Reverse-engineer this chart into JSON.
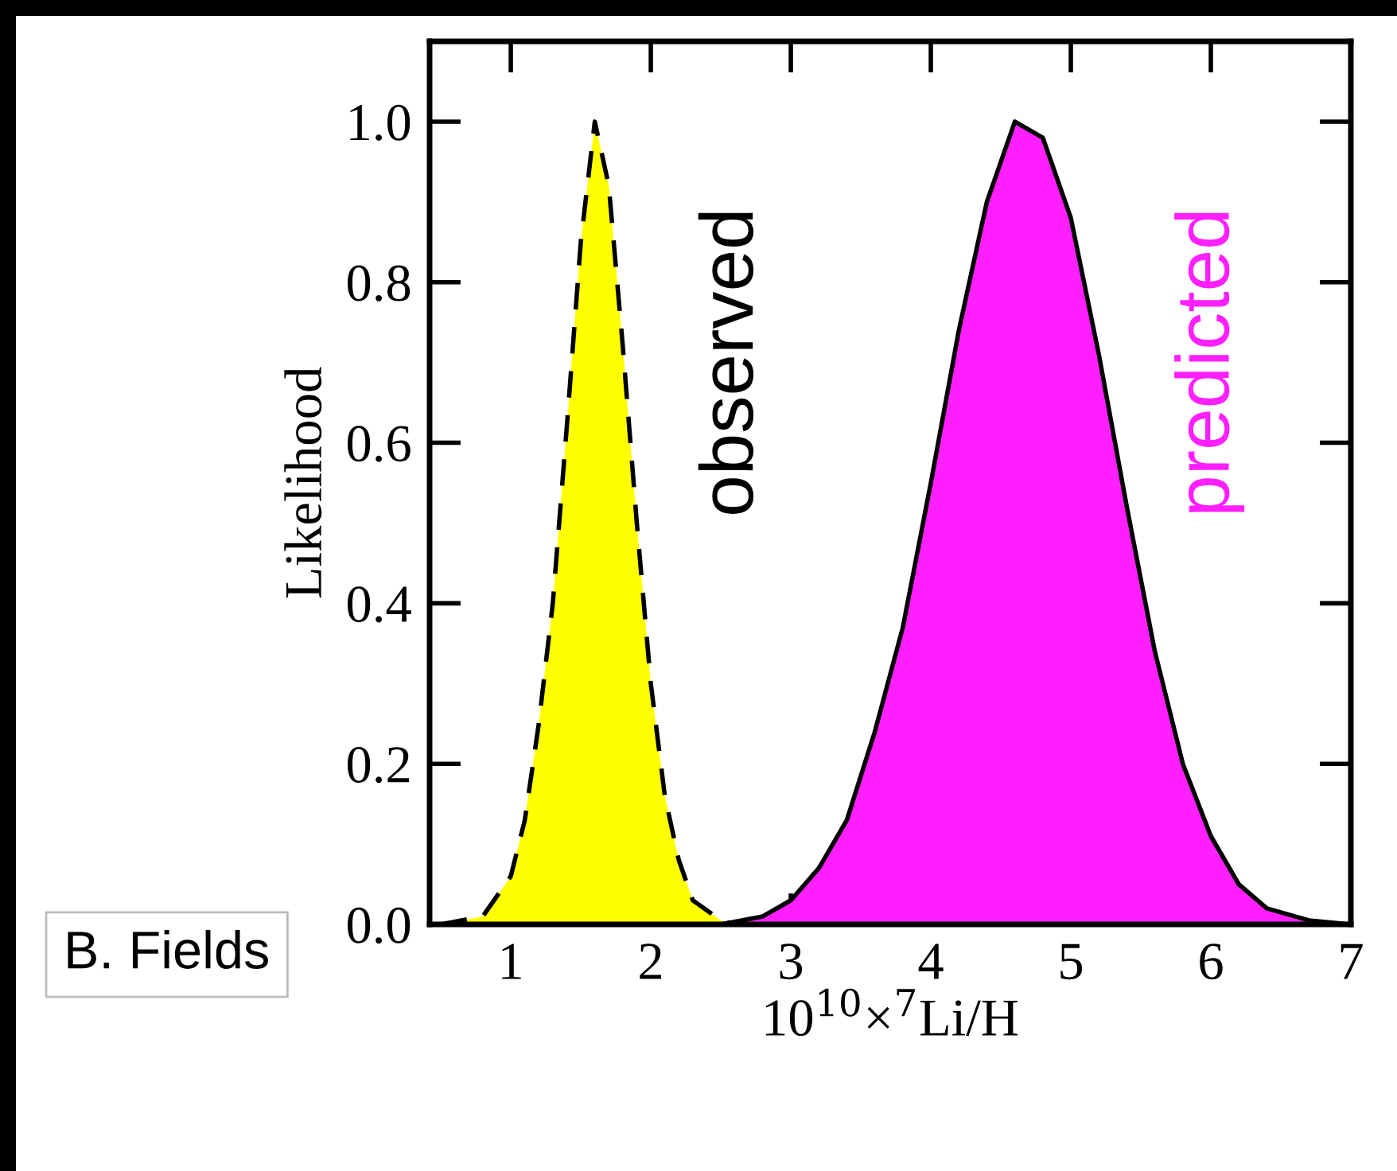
{
  "chart_data": {
    "type": "area",
    "xlabel": "10$^{10}$×$^{7}$Li/H",
    "ylabel": "Likelihood",
    "xlim": [
      0.42,
      7.0
    ],
    "ylim": [
      0,
      1.1
    ],
    "xticks": [
      1,
      2,
      3,
      4,
      5,
      6,
      7
    ],
    "yticks": [
      {
        "value": 0,
        "label": "0.0"
      },
      {
        "value": 0.2,
        "label": "0.2"
      },
      {
        "value": 0.4,
        "label": "0.4"
      },
      {
        "value": 0.6,
        "label": "0.6"
      },
      {
        "value": 0.8,
        "label": "0.8"
      },
      {
        "value": 1.0,
        "label": "1.0"
      }
    ],
    "grid": false,
    "annotations": [
      "B. Fields"
    ],
    "series": [
      {
        "name": "observed",
        "color": "#ffff00",
        "line_style": "dashed",
        "x": [
          0.5,
          0.8,
          1.0,
          1.1,
          1.2,
          1.3,
          1.4,
          1.5,
          1.6,
          1.7,
          1.8,
          1.9,
          2.0,
          2.1,
          2.2,
          2.3,
          2.5,
          2.6
        ],
        "values": [
          0.0,
          0.01,
          0.06,
          0.13,
          0.25,
          0.4,
          0.62,
          0.85,
          1.0,
          0.92,
          0.72,
          0.5,
          0.3,
          0.16,
          0.08,
          0.03,
          0.005,
          0.0
        ]
      },
      {
        "name": "predicted",
        "color": "#ff1fff",
        "line_style": "solid",
        "x": [
          2.5,
          2.8,
          3.0,
          3.2,
          3.4,
          3.6,
          3.8,
          4.0,
          4.2,
          4.4,
          4.6,
          4.8,
          5.0,
          5.2,
          5.4,
          5.6,
          5.8,
          6.0,
          6.2,
          6.4,
          6.7,
          7.0
        ],
        "values": [
          0.0,
          0.01,
          0.03,
          0.07,
          0.13,
          0.24,
          0.37,
          0.55,
          0.74,
          0.9,
          1.0,
          0.98,
          0.88,
          0.71,
          0.52,
          0.34,
          0.2,
          0.11,
          0.05,
          0.02,
          0.005,
          0.0
        ]
      }
    ]
  }
}
